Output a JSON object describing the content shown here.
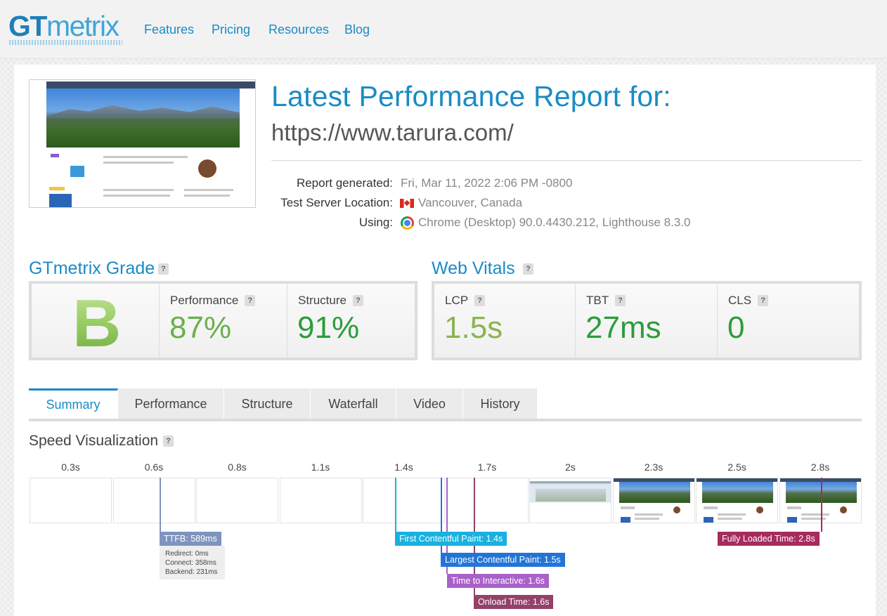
{
  "header": {
    "logo_gt": "GT",
    "logo_metrix": "metrix",
    "nav": [
      "Features",
      "Pricing",
      "Resources",
      "Blog"
    ]
  },
  "report": {
    "title": "Latest Performance Report for:",
    "url": "https://www.tarura.com/",
    "generated_label": "Report generated:",
    "generated_value": "Fri, Mar 11, 2022 2:06 PM -0800",
    "location_label": "Test Server Location:",
    "location_value": "Vancouver, Canada",
    "using_label": "Using:",
    "using_value": "Chrome (Desktop) 90.0.4430.212, Lighthouse 8.3.0"
  },
  "grade": {
    "title": "GTmetrix Grade",
    "letter": "B",
    "performance_label": "Performance",
    "performance_value": "87%",
    "structure_label": "Structure",
    "structure_value": "91%"
  },
  "vitals": {
    "title": "Web Vitals",
    "lcp_label": "LCP",
    "lcp_value": "1.5s",
    "tbt_label": "TBT",
    "tbt_value": "27ms",
    "cls_label": "CLS",
    "cls_value": "0"
  },
  "tabs": [
    "Summary",
    "Performance",
    "Structure",
    "Waterfall",
    "Video",
    "History"
  ],
  "speed": {
    "title": "Speed Visualization",
    "ticks": [
      "0.3s",
      "0.6s",
      "0.8s",
      "1.1s",
      "1.4s",
      "1.7s",
      "2s",
      "2.3s",
      "2.5s",
      "2.8s"
    ],
    "markers": {
      "ttfb": "TTFB: 589ms",
      "fcp": "First Contentful Paint: 1.4s",
      "lcp": "Largest Contentful Paint: 1.5s",
      "tti": "Time to Interactive: 1.6s",
      "onload": "Onload Time: 1.6s",
      "fully": "Fully Loaded Time: 2.8s"
    },
    "ttfb_details": [
      "Redirect: 0ms",
      "Connect: 358ms",
      "Backend: 231ms"
    ]
  },
  "icons": {
    "help": "?",
    "flag": "canada-flag-icon",
    "browser": "chrome-icon"
  },
  "colors": {
    "accent": "#1a8bc5",
    "perf": "#6ab04c",
    "struct": "#2a9d3a",
    "lcp": "#8ab44e",
    "ttfb": "#7f93bf",
    "fcp": "#18b1e0",
    "lcp_marker": "#2275d6",
    "tti": "#a961c9",
    "onload": "#94416a",
    "fully": "#a52c5c"
  }
}
